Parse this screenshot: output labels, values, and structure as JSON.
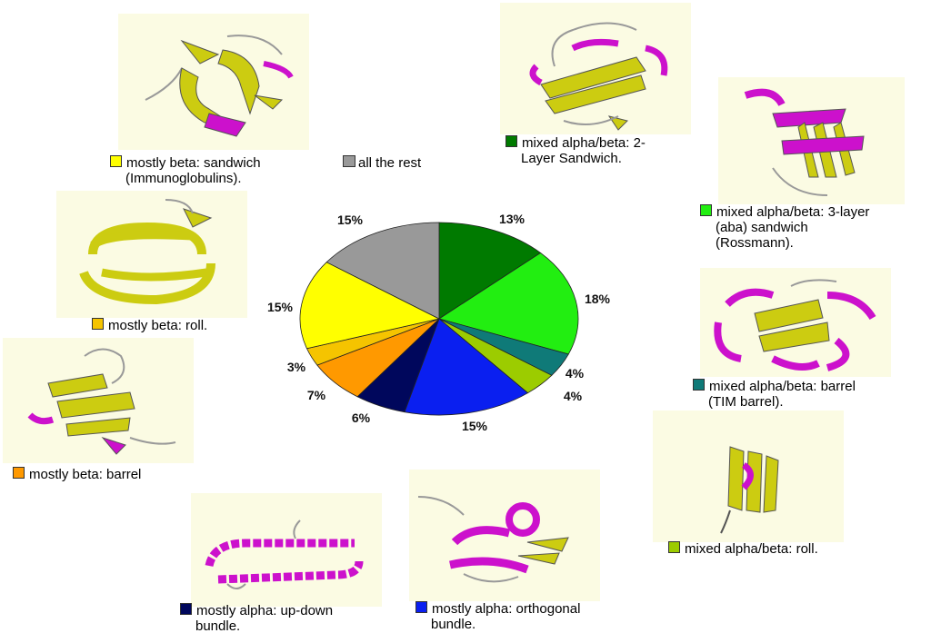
{
  "chart_data": {
    "type": "pie",
    "title": "",
    "slices": [
      {
        "label": "mixed alpha/beta: 2-Layer Sandwich.",
        "value": 13,
        "color": "#007a00",
        "pct_label": "13%"
      },
      {
        "label": "mixed alpha/beta: 3-layer (aba) sandwich (Rossmann).",
        "value": 18,
        "color": "#22ee11",
        "pct_label": "18%"
      },
      {
        "label": "mixed alpha/beta: barrel (TIM barrel).",
        "value": 4,
        "color": "#0f7a78",
        "pct_label": "4%"
      },
      {
        "label": "mixed alpha/beta: roll.",
        "value": 4,
        "color": "#9ccc00",
        "pct_label": "4%"
      },
      {
        "label": "mostly alpha: orthogonal bundle.",
        "value": 15,
        "color": "#0a1ff0",
        "pct_label": "15%"
      },
      {
        "label": "mostly alpha: up-down bundle.",
        "value": 6,
        "color": "#00075c",
        "pct_label": "6%"
      },
      {
        "label": "mostly beta: barrel",
        "value": 7,
        "color": "#ff9900",
        "pct_label": "7%"
      },
      {
        "label": "mostly beta: roll.",
        "value": 3,
        "color": "#f5c400",
        "pct_label": "3%"
      },
      {
        "label": "mostly beta: sandwich (Immunoglobulins).",
        "value": 15,
        "color": "#ffff00",
        "pct_label": "15%"
      },
      {
        "label": "all the rest",
        "value": 15,
        "color": "#999999",
        "pct_label": "15%"
      }
    ]
  },
  "legends": {
    "sandwich_line1": "mostly beta: sandwich",
    "sandwich_line2": "(Immunoglobulins).",
    "rest": "all the rest",
    "two_layer_line1": "mixed alpha/beta: 2-",
    "two_layer_line2": "Layer Sandwich.",
    "three_layer_line1": "mixed alpha/beta: 3-layer",
    "three_layer_line2": "(aba) sandwich",
    "three_layer_line3": "(Rossmann).",
    "beta_roll": "mostly beta: roll.",
    "tim_line1": "mixed alpha/beta: barrel",
    "tim_line2": "(TIM barrel).",
    "beta_barrel": "mostly beta: barrel",
    "ab_roll": "mixed alpha/beta: roll.",
    "updown_line1": "mostly alpha: up-down",
    "updown_line2": "bundle.",
    "ortho_line1": "mostly alpha: orthogonal",
    "ortho_line2": "bundle."
  },
  "colors": {
    "panel_bg": "#fbfbe3",
    "strand": "#cccc11",
    "helix": "#cc11cc",
    "coil": "#999999"
  },
  "images": [
    {
      "name": "protein-image-beta-sandwich",
      "icon": "protein-structure-icon"
    },
    {
      "name": "protein-image-2-layer-sandwich",
      "icon": "protein-structure-icon"
    },
    {
      "name": "protein-image-rossmann",
      "icon": "protein-structure-icon"
    },
    {
      "name": "protein-image-beta-roll",
      "icon": "protein-structure-icon"
    },
    {
      "name": "protein-image-tim-barrel",
      "icon": "protein-structure-icon"
    },
    {
      "name": "protein-image-beta-barrel",
      "icon": "protein-structure-icon"
    },
    {
      "name": "protein-image-alpha-beta-roll",
      "icon": "protein-structure-icon"
    },
    {
      "name": "protein-image-up-down-bundle",
      "icon": "protein-structure-icon"
    },
    {
      "name": "protein-image-orthogonal-bundle",
      "icon": "protein-structure-icon"
    }
  ]
}
